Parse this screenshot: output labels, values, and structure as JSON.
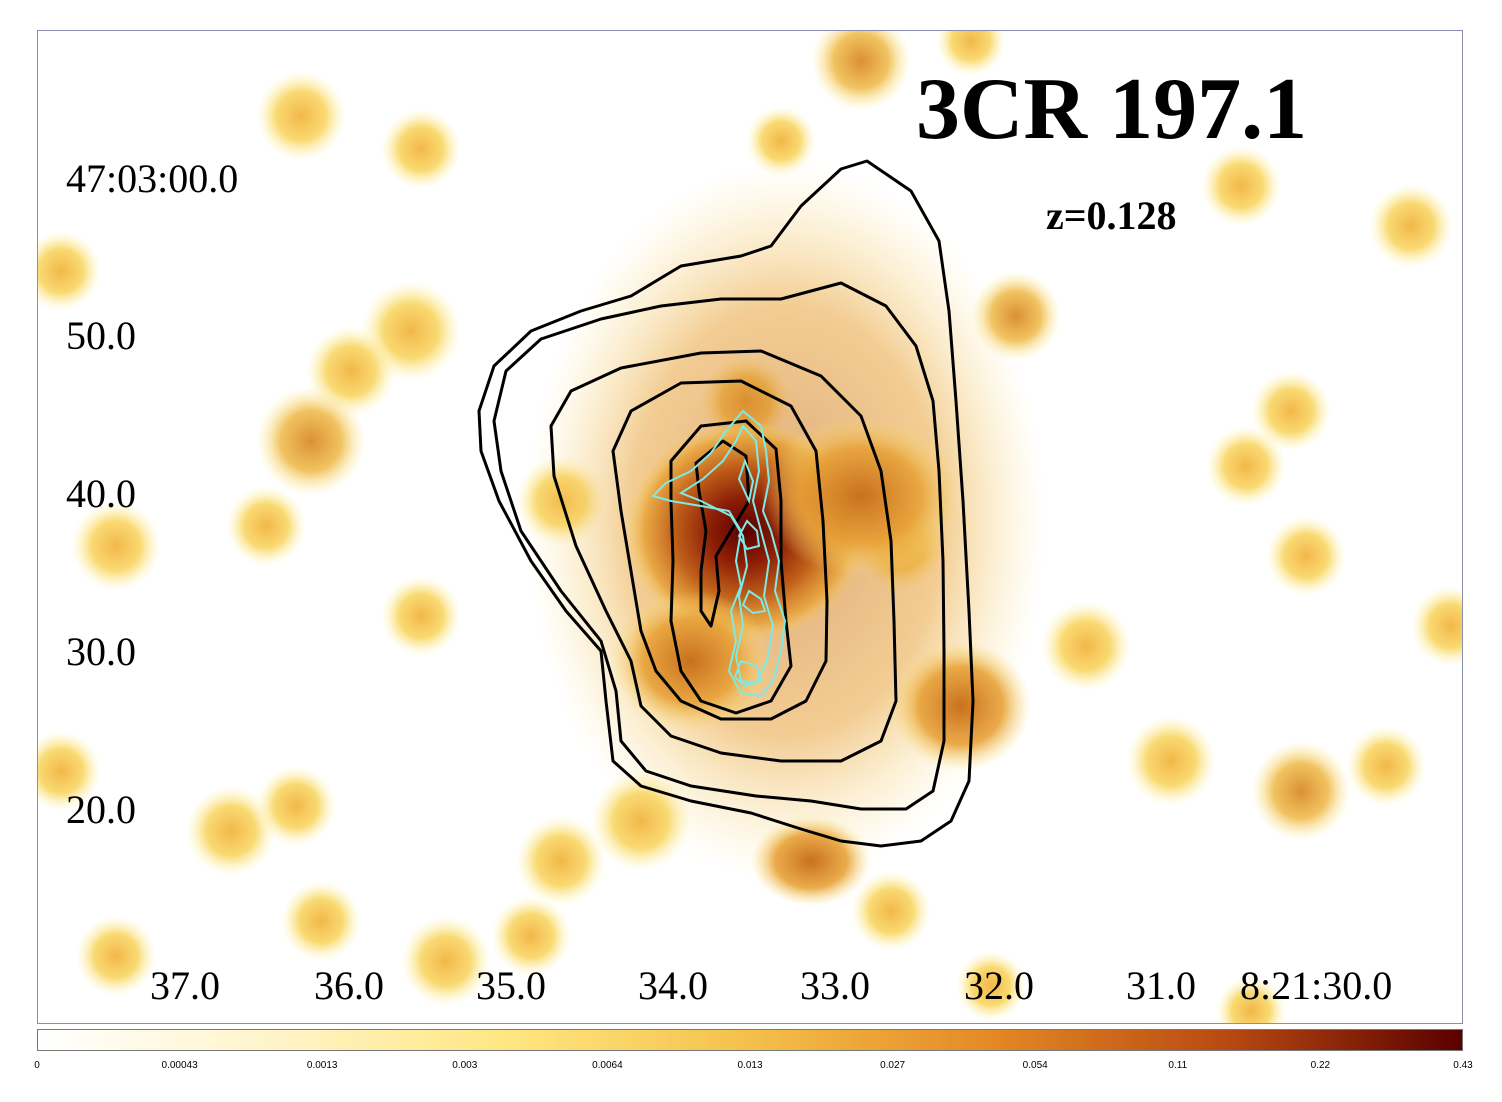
{
  "title": "3CR 197.1",
  "redshift": "z=0.128",
  "axes": {
    "dec_labels": [
      "47:03:00.0",
      "50.0",
      "40.0",
      "30.0",
      "20.0"
    ],
    "ra_labels": [
      "37.0",
      "36.0",
      "35.0",
      "34.0",
      "33.0",
      "32.0",
      "31.0",
      "8:21:30.0"
    ]
  },
  "colorbar": {
    "ticks": [
      "0",
      "0.00043",
      "0.0013",
      "0.003",
      "0.0064",
      "0.013",
      "0.027",
      "0.054",
      "0.11",
      "0.22",
      "0.43"
    ],
    "colors": [
      "#ffffff",
      "#fff4c8",
      "#ffe680",
      "#f4c04a",
      "#e48a25",
      "#b94a12",
      "#5a0000"
    ]
  },
  "contours": {
    "optical_color": "#000000",
    "radio_color": "#7fe9e4"
  }
}
